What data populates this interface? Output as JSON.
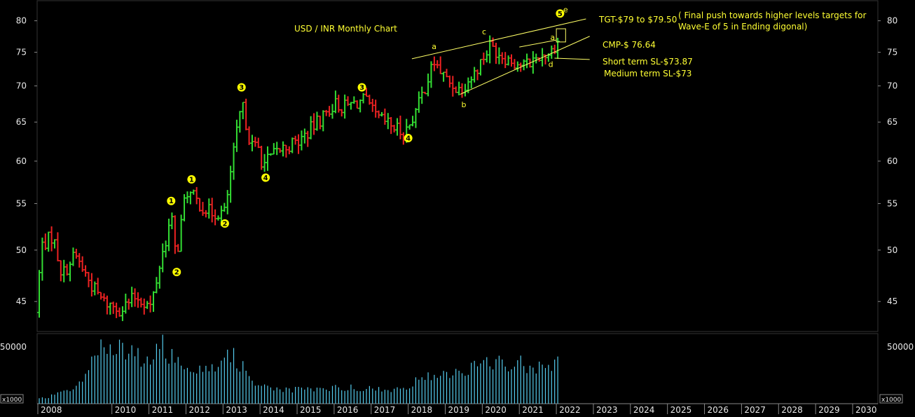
{
  "chart_data": {
    "type": "ohlc",
    "title": "USD / INR  Monthly Chart",
    "price_axis": {
      "ticks": [
        45,
        50,
        55,
        60,
        65,
        70,
        75,
        80
      ],
      "range": [
        42.5,
        83
      ],
      "scale": "log"
    },
    "volume_axis": {
      "ticks": [
        50000
      ],
      "unit_label": "x1000"
    },
    "time_axis": {
      "ticks": [
        "2008",
        "2010",
        "2011",
        "2012",
        "2013",
        "2014",
        "2015",
        "2016",
        "2017",
        "2018",
        "2019",
        "2020",
        "2021",
        "2022",
        "2023",
        "2024",
        "2025",
        "2026",
        "2027",
        "2028",
        "2029",
        "2030"
      ]
    },
    "colors": {
      "up": "#33dd33",
      "down": "#ee2222",
      "volume": "#55ccee",
      "annotation": "#ffff33",
      "wave_marker": "#ffff00"
    },
    "anchors": [
      {
        "date": "2008.00",
        "price": 44.0
      },
      {
        "date": "2008.15",
        "price": 50.5
      },
      {
        "date": "2008.45",
        "price": 51.5
      },
      {
        "date": "2008.70",
        "price": 47.5
      },
      {
        "date": "2009.05",
        "price": 49.5
      },
      {
        "date": "2009.50",
        "price": 46.5
      },
      {
        "date": "2009.80",
        "price": 45.0
      },
      {
        "date": "2010.30",
        "price": 44.3
      },
      {
        "date": "2010.70",
        "price": 45.5
      },
      {
        "date": "2011.10",
        "price": 44.5
      },
      {
        "date": "2011.40",
        "price": 49.5
      },
      {
        "date": "2011.65",
        "price": 53.5
      },
      {
        "date": "2011.78",
        "price": 49.0
      },
      {
        "date": "2012.05",
        "price": 56.5
      },
      {
        "date": "2012.40",
        "price": 55.0
      },
      {
        "date": "2012.70",
        "price": 54.0
      },
      {
        "date": "2013.10",
        "price": 54.0
      },
      {
        "date": "2013.25",
        "price": 58.5
      },
      {
        "date": "2013.55",
        "price": 67.5
      },
      {
        "date": "2013.80",
        "price": 62.0
      },
      {
        "date": "2014.05",
        "price": 61.5
      },
      {
        "date": "2014.10",
        "price": 59.5
      },
      {
        "date": "2014.60",
        "price": 61.5
      },
      {
        "date": "2015.10",
        "price": 62.5
      },
      {
        "date": "2015.60",
        "price": 65.0
      },
      {
        "date": "2016.05",
        "price": 67.5
      },
      {
        "date": "2016.30",
        "price": 67.0
      },
      {
        "date": "2016.85",
        "price": 68.0
      },
      {
        "date": "2017.20",
        "price": 65.5
      },
      {
        "date": "2017.60",
        "price": 64.5
      },
      {
        "date": "2017.95",
        "price": 63.5
      },
      {
        "date": "2018.30",
        "price": 67.0
      },
      {
        "date": "2018.75",
        "price": 73.5
      },
      {
        "date": "2019.05",
        "price": 71.0
      },
      {
        "date": "2019.40",
        "price": 69.5
      },
      {
        "date": "2019.80",
        "price": 71.5
      },
      {
        "date": "2020.25",
        "price": 76.0
      },
      {
        "date": "2020.60",
        "price": 74.5
      },
      {
        "date": "2020.90",
        "price": 73.5
      },
      {
        "date": "2021.20",
        "price": 73.0
      },
      {
        "date": "2021.60",
        "price": 74.5
      },
      {
        "date": "2021.90",
        "price": 75.0
      },
      {
        "date": "2022.05",
        "price": 76.64
      }
    ],
    "volume_profile": [
      {
        "date": "2008.0",
        "volume": 4000
      },
      {
        "date": "2009.0",
        "volume": 14000
      },
      {
        "date": "2009.6",
        "volume": 52000
      },
      {
        "date": "2010.3",
        "volume": 46000
      },
      {
        "date": "2011.0",
        "volume": 40000
      },
      {
        "date": "2011.3",
        "volume": 52000
      },
      {
        "date": "2011.8",
        "volume": 36000
      },
      {
        "date": "2012.5",
        "volume": 34000
      },
      {
        "date": "2013.3",
        "volume": 42000
      },
      {
        "date": "2013.8",
        "volume": 20000
      },
      {
        "date": "2014.5",
        "volume": 12000
      },
      {
        "date": "2015.5",
        "volume": 13000
      },
      {
        "date": "2016.5",
        "volume": 15000
      },
      {
        "date": "2017.5",
        "volume": 11000
      },
      {
        "date": "2018.6",
        "volume": 25000
      },
      {
        "date": "2019.5",
        "volume": 30000
      },
      {
        "date": "2020.4",
        "volume": 38000
      },
      {
        "date": "2021.5",
        "volume": 34000
      },
      {
        "date": "2022.0",
        "volume": 40000
      }
    ],
    "wave_labels": [
      {
        "label": "1",
        "date": "2011.60",
        "price": 55.3
      },
      {
        "label": "2",
        "date": "2011.75",
        "price": 47.8
      },
      {
        "label": "1",
        "date": "2012.15",
        "price": 57.8
      },
      {
        "label": "2",
        "date": "2013.05",
        "price": 52.8
      },
      {
        "label": "3",
        "date": "2013.50",
        "price": 69.8
      },
      {
        "label": "4",
        "date": "2014.15",
        "price": 58.0
      },
      {
        "label": "3",
        "date": "2016.75",
        "price": 69.8
      },
      {
        "label": "4",
        "date": "2018.00",
        "price": 62.9
      },
      {
        "label": "5",
        "date": "2022.10",
        "price": 81.2
      }
    ],
    "letter_labels": [
      {
        "label": "a",
        "date": "2018.70",
        "price": 75.5
      },
      {
        "label": "b",
        "date": "2019.50",
        "price": 67.0
      },
      {
        "label": "c",
        "date": "2020.05",
        "price": 77.8
      },
      {
        "label": "d",
        "date": "2021.85",
        "price": 72.8
      },
      {
        "label": "a",
        "date": "2021.90",
        "price": 76.9
      },
      {
        "label": "e",
        "date": "2022.25",
        "price": 81.4
      }
    ],
    "annotations": [
      {
        "id": "tgt",
        "text": "TGT-$79 to $79.50"
      },
      {
        "id": "note1",
        "text": "( Final push towards higher levels targets for"
      },
      {
        "id": "note2",
        "text": "Wave-E of 5 in Ending digonal)"
      },
      {
        "id": "cmp",
        "text": "CMP-$ 76.64"
      },
      {
        "id": "sl_short",
        "text": "Short term SL-$73.87"
      },
      {
        "id": "sl_med",
        "text": "Medium term SL-$73"
      }
    ],
    "trendlines": [
      {
        "name": "upper-trendline",
        "from": {
          "date": "2018.10",
          "price": 74.0
        },
        "to": {
          "date": "2022.80",
          "price": 80.3
        }
      },
      {
        "name": "lower-trendline",
        "from": {
          "date": "2019.40",
          "price": 68.8
        },
        "to": {
          "date": "2022.90",
          "price": 77.5
        }
      },
      {
        "name": "inner-upper-trendline",
        "from": {
          "date": "2021.00",
          "price": 75.8
        },
        "to": {
          "date": "2022.00",
          "price": 76.9
        }
      },
      {
        "name": "sl-pointer-line",
        "from": {
          "date": "2021.95",
          "price": 74.1
        },
        "to": {
          "date": "2022.90",
          "price": 73.9
        }
      }
    ],
    "target_box": {
      "date_start": "2022.00",
      "date_end": "2022.25",
      "price_low": 76.6,
      "price_high": 78.7
    }
  }
}
